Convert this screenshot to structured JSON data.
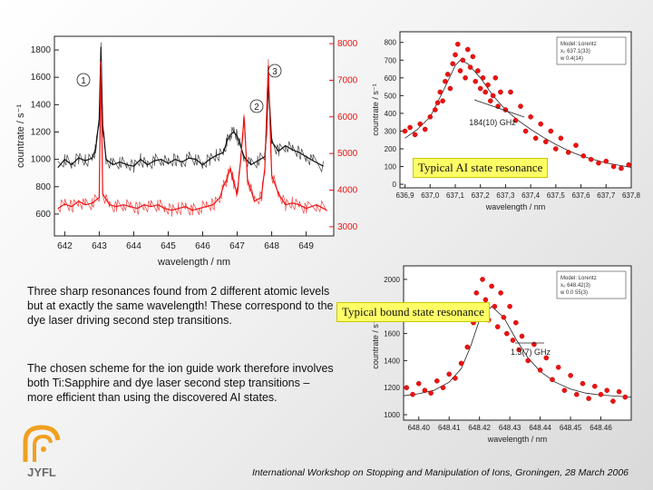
{
  "chart_data": [
    {
      "type": "line",
      "xlabel": "wavelength / nm",
      "ylabel": "countrate / s⁻¹",
      "xlim": [
        641.7,
        649.8
      ],
      "ylim": [
        440,
        1900
      ],
      "y2lim": [
        2750,
        8200
      ],
      "x_ticks": [
        642,
        643,
        644,
        645,
        646,
        647,
        648,
        649
      ],
      "y_ticks": [
        600,
        800,
        1000,
        1200,
        1400,
        1600,
        1800
      ],
      "y2_ticks": [
        3000,
        4000,
        5000,
        6000,
        7000,
        8000
      ],
      "annotations": [
        "1",
        "2",
        "3"
      ],
      "series": [
        {
          "color": "#111111",
          "axis": "left",
          "x": [
            641.8,
            642.0,
            642.2,
            642.4,
            642.6,
            642.8,
            642.9,
            643.0,
            643.05,
            643.1,
            643.2,
            643.4,
            643.6,
            643.8,
            644.0,
            644.2,
            644.4,
            644.6,
            644.8,
            645.0,
            645.2,
            645.4,
            645.6,
            645.8,
            646.0,
            646.2,
            646.4,
            646.6,
            646.7,
            646.8,
            646.9,
            647.0,
            647.2,
            647.4,
            647.6,
            647.8,
            647.85,
            647.9,
            648.0,
            648.2,
            648.4,
            648.6,
            648.8,
            649.0,
            649.2,
            649.5
          ],
          "y": [
            940,
            1000,
            960,
            1010,
            990,
            1010,
            1080,
            1300,
            1820,
            1250,
            1000,
            960,
            980,
            960,
            950,
            1000,
            960,
            990,
            1000,
            970,
            1000,
            980,
            1010,
            1000,
            960,
            1000,
            1030,
            1050,
            1130,
            1180,
            1200,
            1170,
            1020,
            960,
            990,
            1020,
            1200,
            1560,
            1130,
            1060,
            1100,
            1070,
            1050,
            1020,
            990,
            950
          ]
        },
        {
          "color": "#ee1111",
          "axis": "right",
          "x": [
            641.8,
            642.0,
            642.2,
            642.4,
            642.6,
            642.8,
            643.0,
            643.05,
            643.1,
            643.3,
            643.5,
            643.7,
            643.9,
            644.1,
            644.3,
            644.5,
            644.7,
            644.9,
            645.1,
            645.3,
            645.5,
            645.7,
            645.9,
            646.1,
            646.3,
            646.5,
            646.6,
            646.7,
            646.8,
            646.9,
            647.0,
            647.1,
            647.2,
            647.3,
            647.5,
            647.7,
            647.8,
            647.9,
            648.0,
            648.2,
            648.4,
            648.6,
            648.8,
            649.0,
            649.3,
            649.6
          ],
          "y": [
            3500,
            3620,
            3550,
            3700,
            3600,
            3650,
            3800,
            7500,
            3900,
            3600,
            3550,
            3600,
            3550,
            3500,
            3600,
            3550,
            3600,
            3500,
            3450,
            3500,
            3550,
            3450,
            3500,
            3550,
            3600,
            3800,
            4100,
            4300,
            4600,
            4200,
            3900,
            4800,
            6000,
            4300,
            3700,
            3800,
            4600,
            7400,
            4400,
            3900,
            3600,
            3650,
            3600,
            3500,
            3600,
            3450
          ]
        }
      ]
    },
    {
      "type": "scatter",
      "xlabel": "wavelength / nm",
      "ylabel": "countrate / s⁻¹",
      "xlim": [
        636.88,
        637.8
      ],
      "ylim": [
        -20,
        860
      ],
      "x_ticks": [
        "636,9",
        "637,0",
        "637,1",
        "637,2",
        "637,3",
        "637,4",
        "637,5",
        "637,6",
        "637,7",
        "637,8"
      ],
      "x_tick_values": [
        636.9,
        637.0,
        637.1,
        637.2,
        637.3,
        637.4,
        637.5,
        637.6,
        637.7,
        637.8
      ],
      "y_ticks": [
        0,
        100,
        200,
        300,
        400,
        500,
        600,
        700,
        800
      ],
      "annotation": "184(10) GHz",
      "inset": [
        "Model: Lorentz",
        "x₀  637.1(33)",
        "w  0.4(14)"
      ],
      "points_x": [
        636.9,
        636.92,
        636.94,
        636.96,
        636.98,
        637.0,
        637.02,
        637.03,
        637.04,
        637.05,
        637.06,
        637.07,
        637.08,
        637.09,
        637.1,
        637.11,
        637.12,
        637.13,
        637.14,
        637.15,
        637.16,
        637.17,
        637.18,
        637.19,
        637.2,
        637.21,
        637.22,
        637.23,
        637.24,
        637.25,
        637.26,
        637.27,
        637.28,
        637.3,
        637.32,
        637.34,
        637.36,
        637.38,
        637.4,
        637.42,
        637.44,
        637.46,
        637.48,
        637.5,
        637.52,
        637.55,
        637.58,
        637.61,
        637.64,
        637.67,
        637.7,
        637.73,
        637.76,
        637.79
      ],
      "points_y": [
        300,
        320,
        280,
        340,
        310,
        380,
        420,
        460,
        520,
        470,
        580,
        620,
        540,
        680,
        730,
        790,
        640,
        700,
        600,
        760,
        660,
        720,
        580,
        640,
        540,
        600,
        520,
        560,
        470,
        500,
        600,
        440,
        520,
        420,
        520,
        360,
        440,
        300,
        380,
        260,
        340,
        240,
        300,
        200,
        260,
        180,
        220,
        160,
        140,
        120,
        130,
        100,
        90,
        110
      ],
      "fit_x": [
        636.9,
        636.95,
        637.0,
        637.05,
        637.1,
        637.12,
        637.15,
        637.2,
        637.25,
        637.3,
        637.35,
        637.4,
        637.45,
        637.5,
        637.55,
        637.6,
        637.7,
        637.8
      ],
      "fit_y": [
        260,
        310,
        380,
        520,
        670,
        700,
        680,
        600,
        500,
        420,
        360,
        310,
        265,
        225,
        190,
        160,
        120,
        95
      ]
    },
    {
      "type": "scatter",
      "xlabel": "wavelength / nm",
      "ylabel": "countrate / s⁻¹",
      "xlim": [
        648.395,
        648.47
      ],
      "ylim": [
        960,
        2100
      ],
      "x_ticks": [
        "648.40",
        "648.41",
        "648.42",
        "648.43",
        "648.44",
        "648.45",
        "648.46"
      ],
      "x_tick_values": [
        648.4,
        648.41,
        648.42,
        648.43,
        648.44,
        648.45,
        648.46
      ],
      "y_ticks": [
        1000,
        1200,
        1400,
        1600,
        1800,
        2000
      ],
      "annotation": "1.3(7) GHz",
      "inset": [
        "Model: Lorentz",
        "x₀  648.42(3)",
        "w  0.0 55(3)"
      ],
      "points_x": [
        648.396,
        648.398,
        648.4,
        648.402,
        648.404,
        648.406,
        648.408,
        648.41,
        648.412,
        648.414,
        648.416,
        648.418,
        648.419,
        648.42,
        648.421,
        648.422,
        648.423,
        648.424,
        648.425,
        648.426,
        648.427,
        648.428,
        648.429,
        648.43,
        648.431,
        648.432,
        648.433,
        648.434,
        648.436,
        648.438,
        648.44,
        648.442,
        648.444,
        648.446,
        648.448,
        648.45,
        648.452,
        648.454,
        648.456,
        648.458,
        648.46,
        648.462,
        648.464,
        648.466,
        648.468
      ],
      "points_y": [
        1200,
        1150,
        1230,
        1180,
        1160,
        1250,
        1200,
        1300,
        1270,
        1380,
        1500,
        1680,
        1900,
        1780,
        2000,
        1850,
        1700,
        1950,
        1800,
        1650,
        1900,
        1720,
        1600,
        1800,
        1550,
        1680,
        1480,
        1580,
        1400,
        1520,
        1330,
        1420,
        1260,
        1350,
        1180,
        1290,
        1150,
        1230,
        1120,
        1210,
        1150,
        1180,
        1100,
        1170,
        1130
      ],
      "fit_x": [
        648.395,
        648.4,
        648.405,
        648.41,
        648.414,
        648.417,
        648.42,
        648.424,
        648.428,
        648.432,
        648.436,
        648.44,
        648.445,
        648.45,
        648.455,
        648.46,
        648.47
      ],
      "fit_y": [
        1140,
        1155,
        1180,
        1240,
        1340,
        1500,
        1700,
        1800,
        1720,
        1560,
        1420,
        1320,
        1240,
        1190,
        1160,
        1145,
        1130
      ]
    }
  ],
  "labels": {
    "ai_banner": "Typical AI state resonance",
    "bound_banner": "Typical bound state resonance",
    "paragraph1": "Three sharp resonances found from 2 different atomic levels but at exactly the same wavelength! These correspond to the dye laser driving second step transitions.",
    "paragraph2": "The chosen scheme for the ion guide work therefore involves both Ti:Sapphire and dye laser second step transitions – more efficient than using the discovered AI states.",
    "footer": "International Workshop on Stopping and Manipulation of Ions, Groningen, 28 March 2006",
    "logo_text": "JYFL"
  },
  "colors": {
    "black_trace": "#111111",
    "red_trace": "#ee1111",
    "red_axis": "#ee1111",
    "banner": "#ffff66",
    "logo_orange": "#f0a020",
    "logo_text": "#6a6a6a"
  }
}
